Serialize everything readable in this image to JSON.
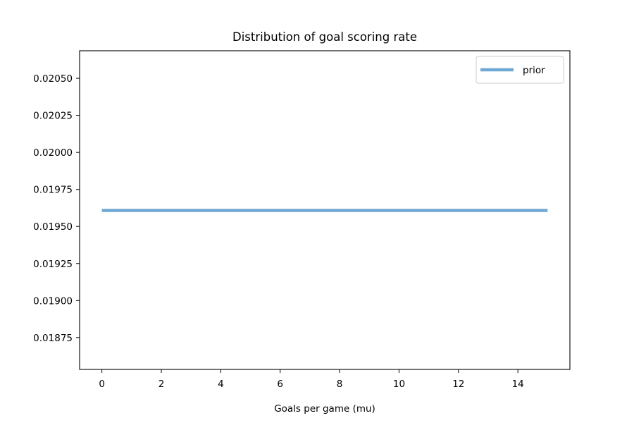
{
  "chart_data": {
    "type": "line",
    "title": "Distribution of goal scoring rate",
    "xlabel": "Goals per game (mu)",
    "ylabel": "",
    "xlim": [
      -0.75,
      15.75
    ],
    "ylim": [
      0.018535,
      0.020686
    ],
    "xticks": [
      0,
      2,
      4,
      6,
      8,
      10,
      12,
      14
    ],
    "xtick_labels": [
      "0",
      "2",
      "4",
      "6",
      "8",
      "10",
      "12",
      "14"
    ],
    "yticks": [
      0.01875,
      0.019,
      0.01925,
      0.0195,
      0.01975,
      0.02,
      0.02025,
      0.0205
    ],
    "ytick_labels": [
      "0.01875",
      "0.01900",
      "0.01925",
      "0.01950",
      "0.01975",
      "0.02000",
      "0.02025",
      "0.02050"
    ],
    "grid": false,
    "legend_position": "top-right",
    "series": [
      {
        "name": "prior",
        "color": "#6fa8d2",
        "x": [
          0,
          15
        ],
        "y": [
          0.019608,
          0.019608
        ]
      }
    ]
  }
}
